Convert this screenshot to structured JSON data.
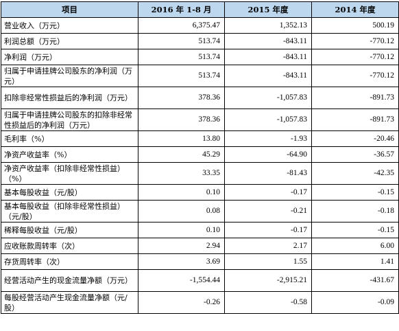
{
  "table": {
    "headers": [
      "项目",
      "2016 年 1-8 月",
      "2015 年度",
      "2014 年度"
    ],
    "rows": [
      {
        "label": "营业收入（万元）",
        "values": [
          "6,375.47",
          "1,352.13",
          "500.19"
        ],
        "lines": 1
      },
      {
        "label": "利润总额（万元）",
        "values": [
          "513.74",
          "-843.11",
          "-770.12"
        ],
        "lines": 1
      },
      {
        "label": "净利润（万元）",
        "values": [
          "513.74",
          "-843.11",
          "-770.12"
        ],
        "lines": 1
      },
      {
        "label": "归属于申请挂牌公司股东的净利润（万元）",
        "values": [
          "513.74",
          "-843.11",
          "-770.12"
        ],
        "lines": 2
      },
      {
        "label": "扣除非经常性损益后的净利润（万元）",
        "values": [
          "378.36",
          "-1,057.83",
          "-891.73"
        ],
        "lines": 2
      },
      {
        "label": "归属于申请挂牌公司股东的扣除非经常性损益后的净利润（万元）",
        "values": [
          "378.36",
          "-1,057.83",
          "-891.73"
        ],
        "lines": 2
      },
      {
        "label": "毛利率（%）",
        "values": [
          "13.80",
          "-1.93",
          "-20.46"
        ],
        "lines": 1
      },
      {
        "label": "净资产收益率（%）",
        "values": [
          "45.29",
          "-64.90",
          "-36.57"
        ],
        "lines": 1
      },
      {
        "label": "净资产收益率（扣除非经常性损益）（%）",
        "values": [
          "33.35",
          "-81.43",
          "-42.35"
        ],
        "lines": 2
      },
      {
        "label": "基本每股收益（元/股）",
        "values": [
          "0.10",
          "-0.17",
          "-0.15"
        ],
        "lines": 1
      },
      {
        "label": "基本每股收益（扣除非经常性损益）（元/股）",
        "values": [
          "0.08",
          "-0.21",
          "-0.18"
        ],
        "lines": 2
      },
      {
        "label": "稀释每股收益（元/股）",
        "values": [
          "0.10",
          "-0.17",
          "-0.15"
        ],
        "lines": 1
      },
      {
        "label": "应收账款周转率（次）",
        "values": [
          "2.94",
          "2.17",
          "6.00"
        ],
        "lines": 1
      },
      {
        "label": "存货周转率（次）",
        "values": [
          "3.69",
          "1.55",
          "1.41"
        ],
        "lines": 1
      },
      {
        "label": "经营活动产生的现金流量净额（万元）",
        "values": [
          "-1,554.44",
          "-2,915.21",
          "-431.67"
        ],
        "lines": 2
      },
      {
        "label": "每股经营活动产生现金流量净额（元/股）",
        "values": [
          "-0.26",
          "-0.58",
          "-0.09"
        ],
        "lines": 2
      }
    ]
  }
}
